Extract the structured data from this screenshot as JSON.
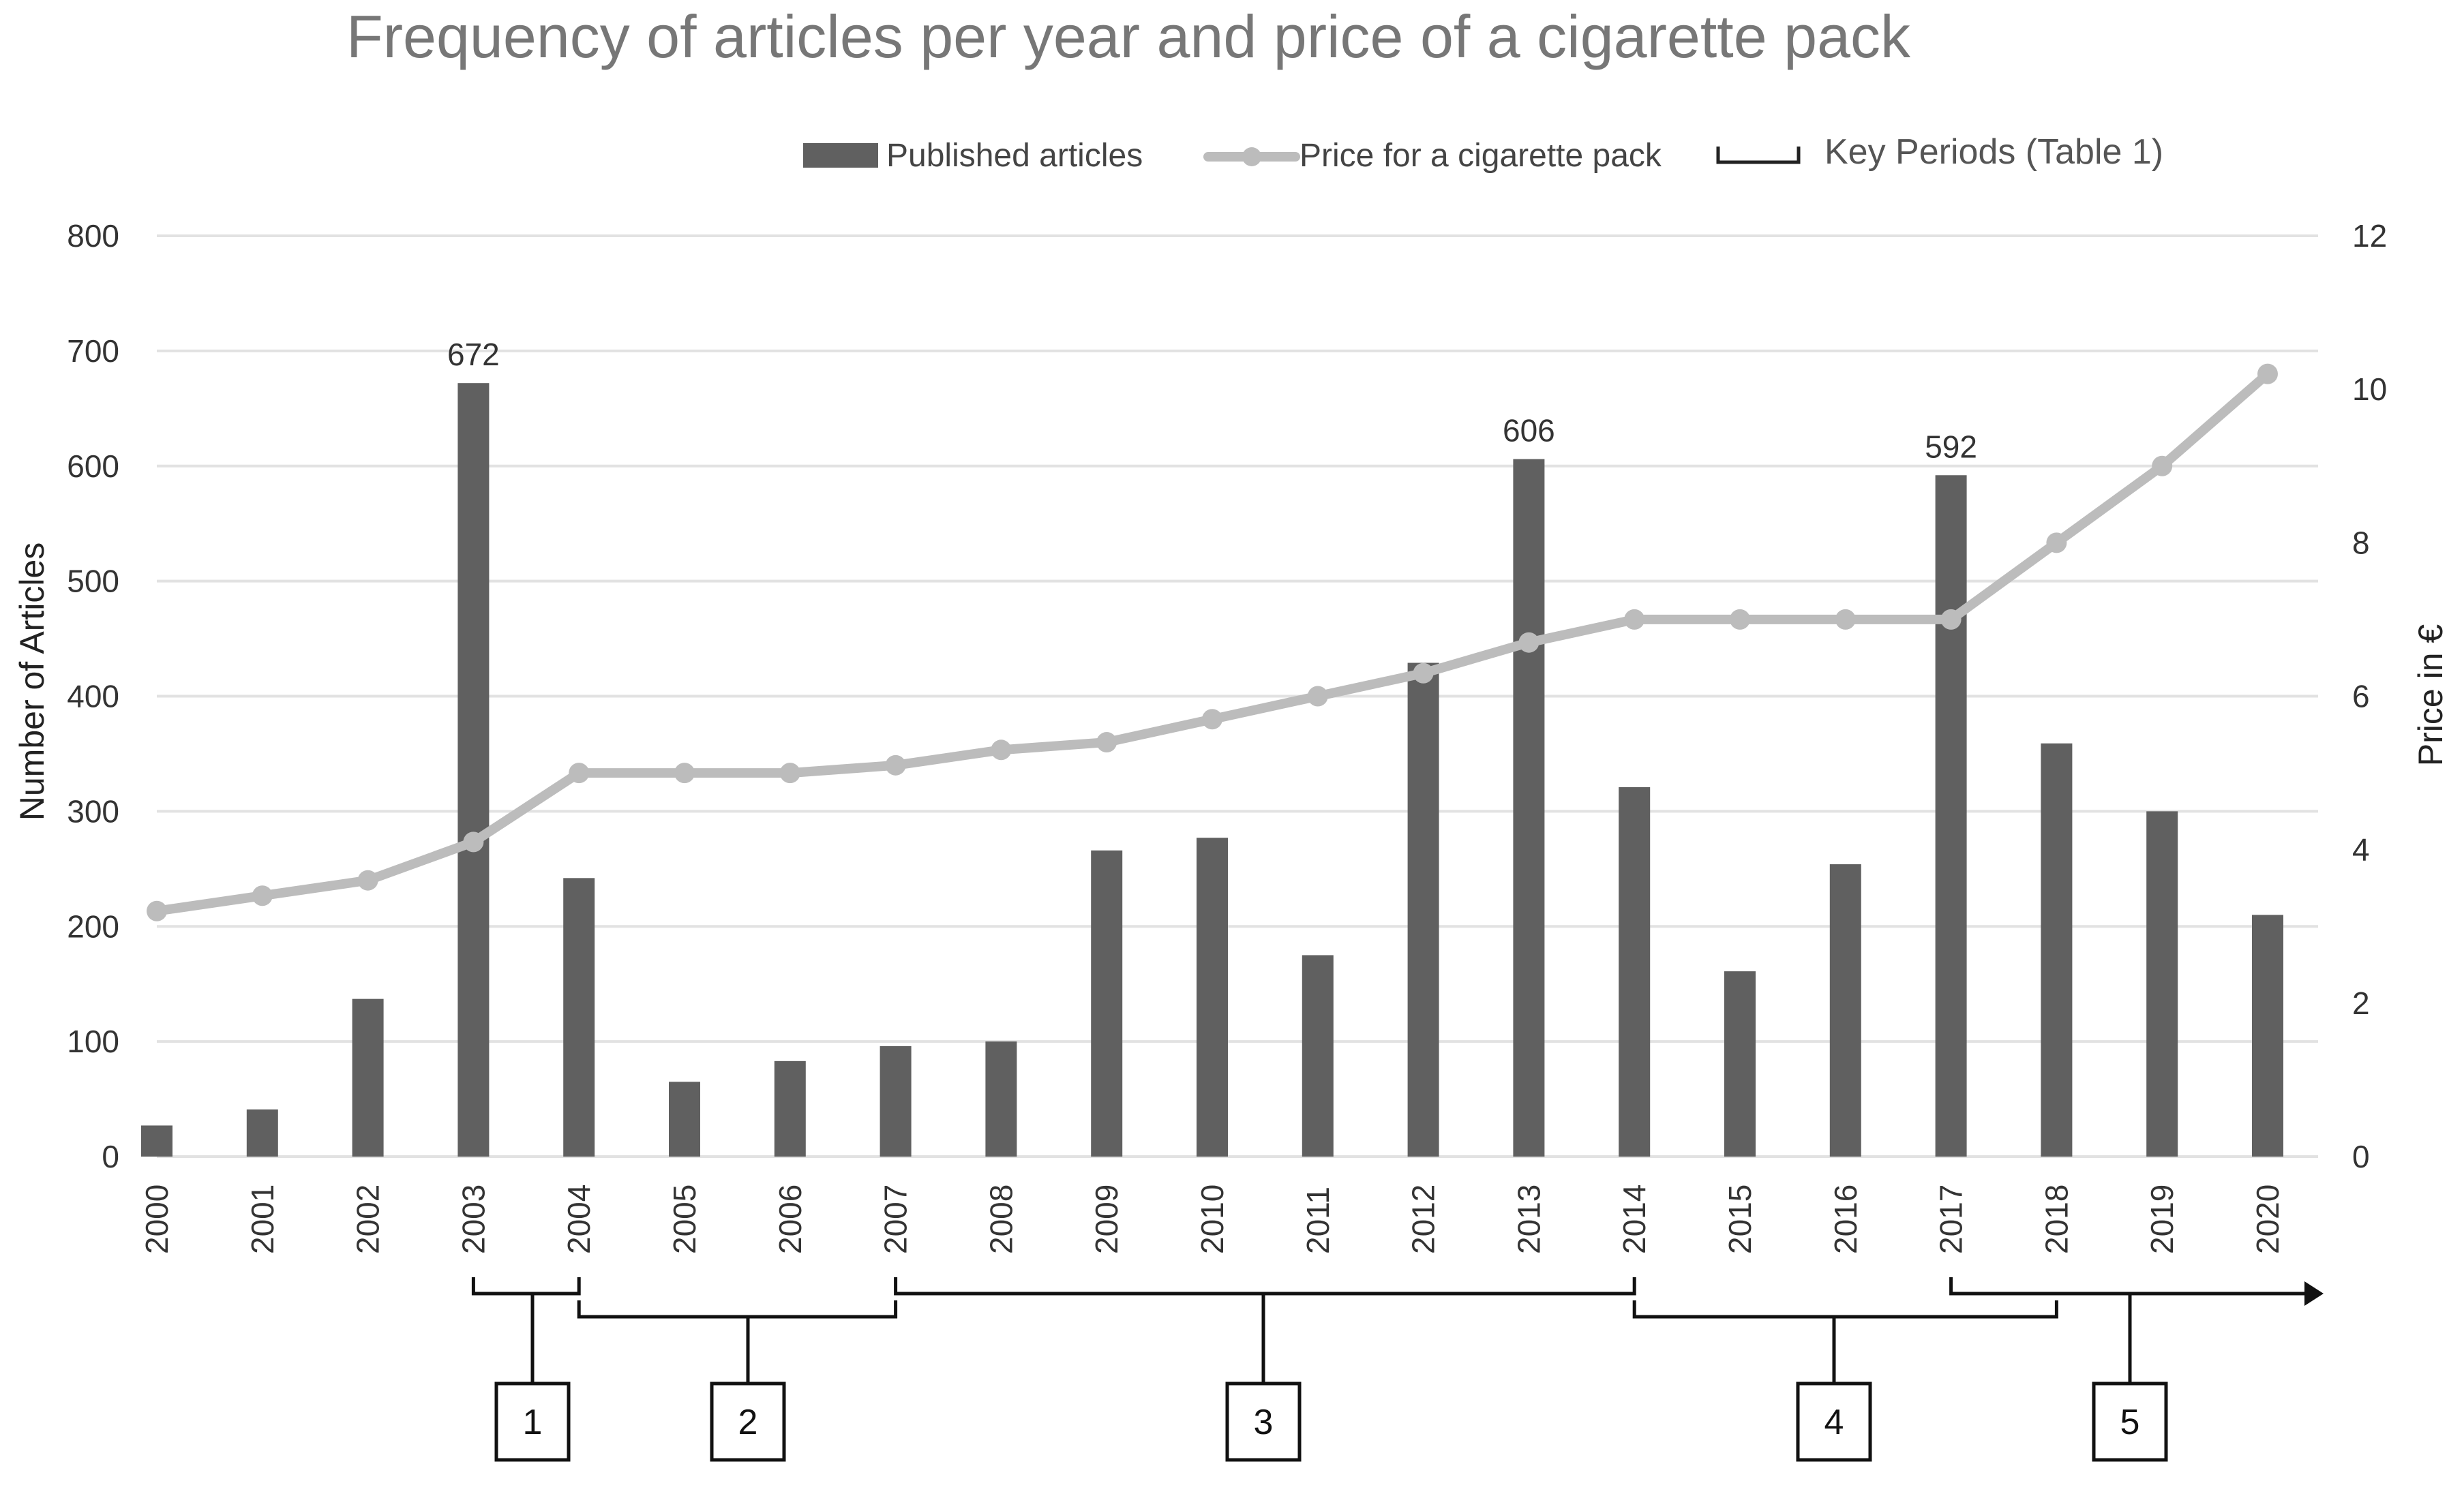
{
  "chart_data": {
    "type": "bar",
    "title": "Frequency of articles per year and price of a cigarette pack",
    "xlabel": "",
    "ylabel": "Number of Articles",
    "y2label": "Price in €",
    "categories": [
      "2000",
      "2001",
      "2002",
      "2003",
      "2004",
      "2005",
      "2006",
      "2007",
      "2008",
      "2009",
      "2010",
      "2011",
      "2012",
      "2013",
      "2014",
      "2015",
      "2016",
      "2017",
      "2018",
      "2019",
      "2020"
    ],
    "ylim": [
      0,
      800
    ],
    "y2lim": [
      0,
      12
    ],
    "yticks": [
      0,
      100,
      200,
      300,
      400,
      500,
      600,
      700,
      800
    ],
    "y2ticks": [
      0,
      2,
      4,
      6,
      8,
      10,
      12
    ],
    "grid": true,
    "legend_position": "top-right",
    "series": [
      {
        "name": "Published articles",
        "type": "bar",
        "axis": "left",
        "color": "#606060",
        "values": [
          27,
          41,
          137,
          672,
          242,
          65,
          83,
          96,
          100,
          266,
          277,
          175,
          429,
          606,
          321,
          161,
          254,
          592,
          359,
          300,
          210
        ]
      },
      {
        "name": "Price for a cigarette pack",
        "type": "line",
        "axis": "right",
        "color": "#bcbcbc",
        "values": [
          3.2,
          3.4,
          3.6,
          4.1,
          5.0,
          5.0,
          5.0,
          5.1,
          5.3,
          5.4,
          5.7,
          6.0,
          6.3,
          6.7,
          7.0,
          7.0,
          7.0,
          7.0,
          8.0,
          9.0,
          10.2
        ]
      }
    ],
    "data_labels": [
      {
        "category": "2003",
        "text": "672"
      },
      {
        "category": "2013",
        "text": "606"
      },
      {
        "category": "2017",
        "text": "592"
      }
    ],
    "key_periods_legend": "Key Periods (Table 1)",
    "key_periods": [
      {
        "label": "1",
        "start": "2003",
        "end": "2004"
      },
      {
        "label": "2",
        "start": "2004",
        "end": "2007"
      },
      {
        "label": "3",
        "start": "2007",
        "end": "2014"
      },
      {
        "label": "4",
        "start": "2014",
        "end": "2018"
      },
      {
        "label": "5",
        "start": "2017",
        "end": "2020",
        "open_ended": true
      }
    ]
  }
}
